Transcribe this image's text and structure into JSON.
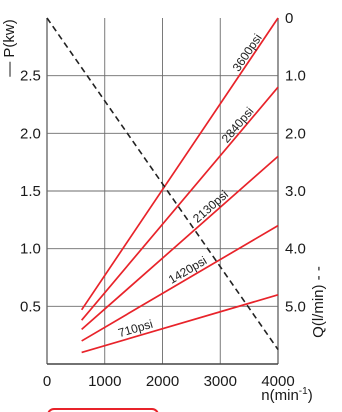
{
  "chart_data": {
    "type": "line",
    "x_axis": {
      "label": "n(min",
      "label_superscript": "-1",
      "label_suffix": ")",
      "range": [
        0,
        4000
      ],
      "tick_values": [
        0,
        1000,
        2000,
        3000,
        4000
      ],
      "tick_labels": [
        "0",
        "1000",
        "2000",
        "3000",
        "4000"
      ]
    },
    "y_left": {
      "label": "— P(kw)",
      "range": [
        0,
        3.0
      ],
      "tick_values": [
        0.5,
        1.0,
        1.5,
        2.0,
        2.5
      ],
      "tick_labels": [
        "0.5",
        "1.0",
        "1.5",
        "2.0",
        "2.5"
      ]
    },
    "y_right": {
      "label": "Q(l/min) - -",
      "range": [
        6.0,
        0
      ],
      "inverted": true,
      "tick_values": [
        0,
        1.0,
        2.0,
        3.0,
        4.0,
        5.0
      ],
      "tick_labels": [
        "0",
        "1.0",
        "2.0",
        "3.0",
        "4.0",
        "5.0"
      ]
    },
    "grid": true,
    "series": [
      {
        "name": "3600psi",
        "axis": "left",
        "style": "solid",
        "color": "#e8232a",
        "x": [
          600,
          4000
        ],
        "y": [
          0.47,
          3.0
        ]
      },
      {
        "name": "2840psi",
        "axis": "left",
        "style": "solid",
        "color": "#e8232a",
        "x": [
          600,
          4000
        ],
        "y": [
          0.38,
          2.4
        ]
      },
      {
        "name": "2130psi",
        "axis": "left",
        "style": "solid",
        "color": "#e8232a",
        "x": [
          600,
          4000
        ],
        "y": [
          0.3,
          1.8
        ]
      },
      {
        "name": "1420psi",
        "axis": "left",
        "style": "solid",
        "color": "#e8232a",
        "x": [
          600,
          4000
        ],
        "y": [
          0.2,
          1.2
        ]
      },
      {
        "name": "710psi",
        "axis": "left",
        "style": "solid",
        "color": "#e8232a",
        "x": [
          600,
          4000
        ],
        "y": [
          0.1,
          0.6
        ]
      },
      {
        "name": "",
        "axis": "right",
        "style": "dashed",
        "color": "#222222",
        "x": [
          0,
          4000
        ],
        "y": [
          0.0,
          5.75
        ]
      }
    ]
  }
}
